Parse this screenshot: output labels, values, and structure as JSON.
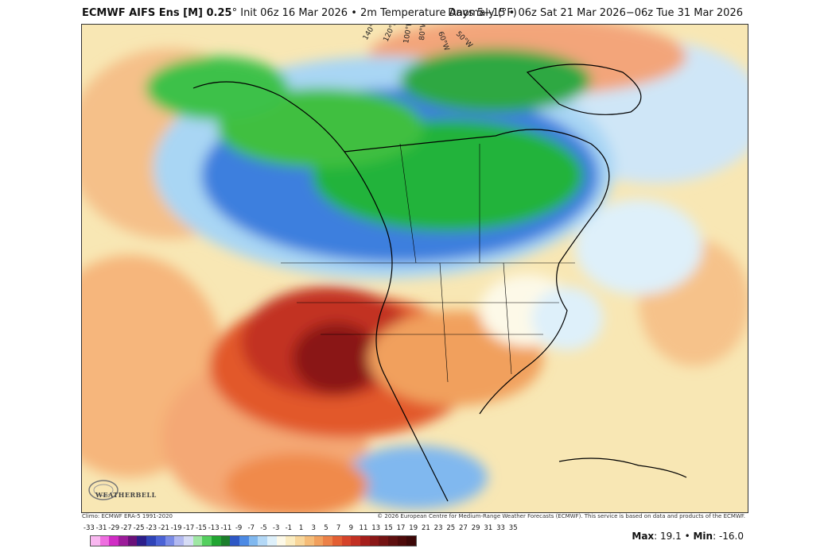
{
  "header": {
    "model": "ECMWF AIFS Ens [M] 0.25",
    "degree_mark": "°",
    "init": "Init 06z 16 Mar 2026",
    "separator": "•",
    "variable": "2m Temperature Anomaly (°F)",
    "period": "Days 5−15 • 06z Sat 21 Mar 2026−06z Tue 31 Mar 2026"
  },
  "map": {
    "longitude_labels": [
      "140°W",
      "120°W",
      "100°W",
      "80°W",
      "60°W",
      "50°W"
    ],
    "colors": {
      "ocean_warm": "#f8e7b4",
      "very_warm": "#9e1a0c",
      "warm": "#e2582b",
      "mild": "#f6b67b",
      "cool": "#a9d6f4",
      "cold": "#3d7fde",
      "very_cold": "#24b33a"
    }
  },
  "branding": {
    "logo_text": "WEATHERBELL"
  },
  "footer": {
    "climo": "Climo: ECMWF ERA-5 1991-2020",
    "copyright": "© 2026 European Centre for Medium-Range Weather Forecasts (ECMWF). This service is based on data and products of the ECMWF."
  },
  "colorbar": {
    "ticks": [
      "-33",
      "-31",
      "-29",
      "-27",
      "-25",
      "-23",
      "-21",
      "-19",
      "-17",
      "-15",
      "-13",
      "-11",
      "-9",
      "-7",
      "-5",
      "-3",
      "-1",
      "1",
      "3",
      "5",
      "7",
      "9",
      "11",
      "13",
      "15",
      "17",
      "19",
      "21",
      "23",
      "25",
      "27",
      "29",
      "31",
      "33",
      "35"
    ],
    "colors": [
      "#f9b7f0",
      "#ef6ee0",
      "#d02cc4",
      "#9c1c9a",
      "#6a117a",
      "#2c1e8a",
      "#2f44b8",
      "#4b63d6",
      "#7b8ce6",
      "#b2b9f0",
      "#d6dcf5",
      "#9fe7a4",
      "#54cf5e",
      "#22a532",
      "#1c7f2c",
      "#2e58c5",
      "#4c8ae4",
      "#80b8ef",
      "#b3d8f6",
      "#def0fa",
      "#fdf9e8",
      "#fbecc0",
      "#f8d69a",
      "#f5bc78",
      "#f1a05d",
      "#ec8148",
      "#e35f33",
      "#d5432a",
      "#c23023",
      "#a51e1b",
      "#8a1717",
      "#741313",
      "#5e0f0f",
      "#4d0a0a",
      "#3c0707"
    ]
  },
  "stats": {
    "max_label": "Max",
    "max_value": "19.1",
    "sep": "•",
    "min_label": "Min",
    "min_value": "-16.0"
  }
}
